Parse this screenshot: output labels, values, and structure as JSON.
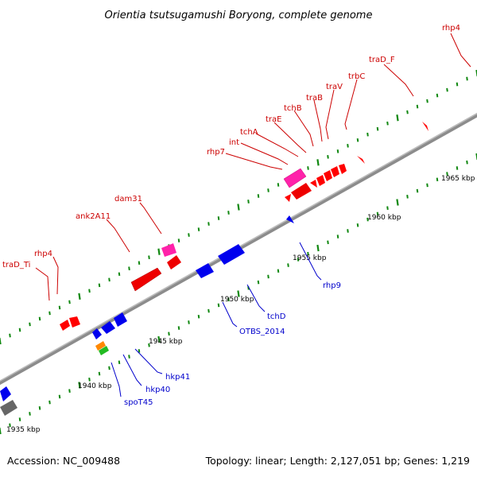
{
  "title": "Orientia tsutsugamushi Boryong, complete genome",
  "footer": {
    "accession": "Accession: NC_009488",
    "summary": "Topology: linear; Length: 2,127,051 bp; Genes: 1,219"
  },
  "ticks": [
    "1935 kbp",
    "1940 kbp",
    "1945 kbp",
    "1950 kbp",
    "1955 kbp",
    "1960 kbp",
    "1965 kbp"
  ],
  "colors": {
    "forward_label": "#cc0000",
    "reverse_label": "#0000cc",
    "backbone": "#8c8c8c",
    "tick_green": "#118811"
  },
  "forward_labels": [
    "traD_Ti",
    "rhp4",
    "ank2A11",
    "dam31",
    "rhp7",
    "int",
    "tchA",
    "traE",
    "tchB",
    "traB",
    "traV",
    "trbC",
    "traD_F",
    "rhp4"
  ],
  "reverse_labels": [
    "spoT45",
    "hkp40",
    "hkp41",
    "OTBS_2014",
    "tchD",
    "rhp9"
  ]
}
